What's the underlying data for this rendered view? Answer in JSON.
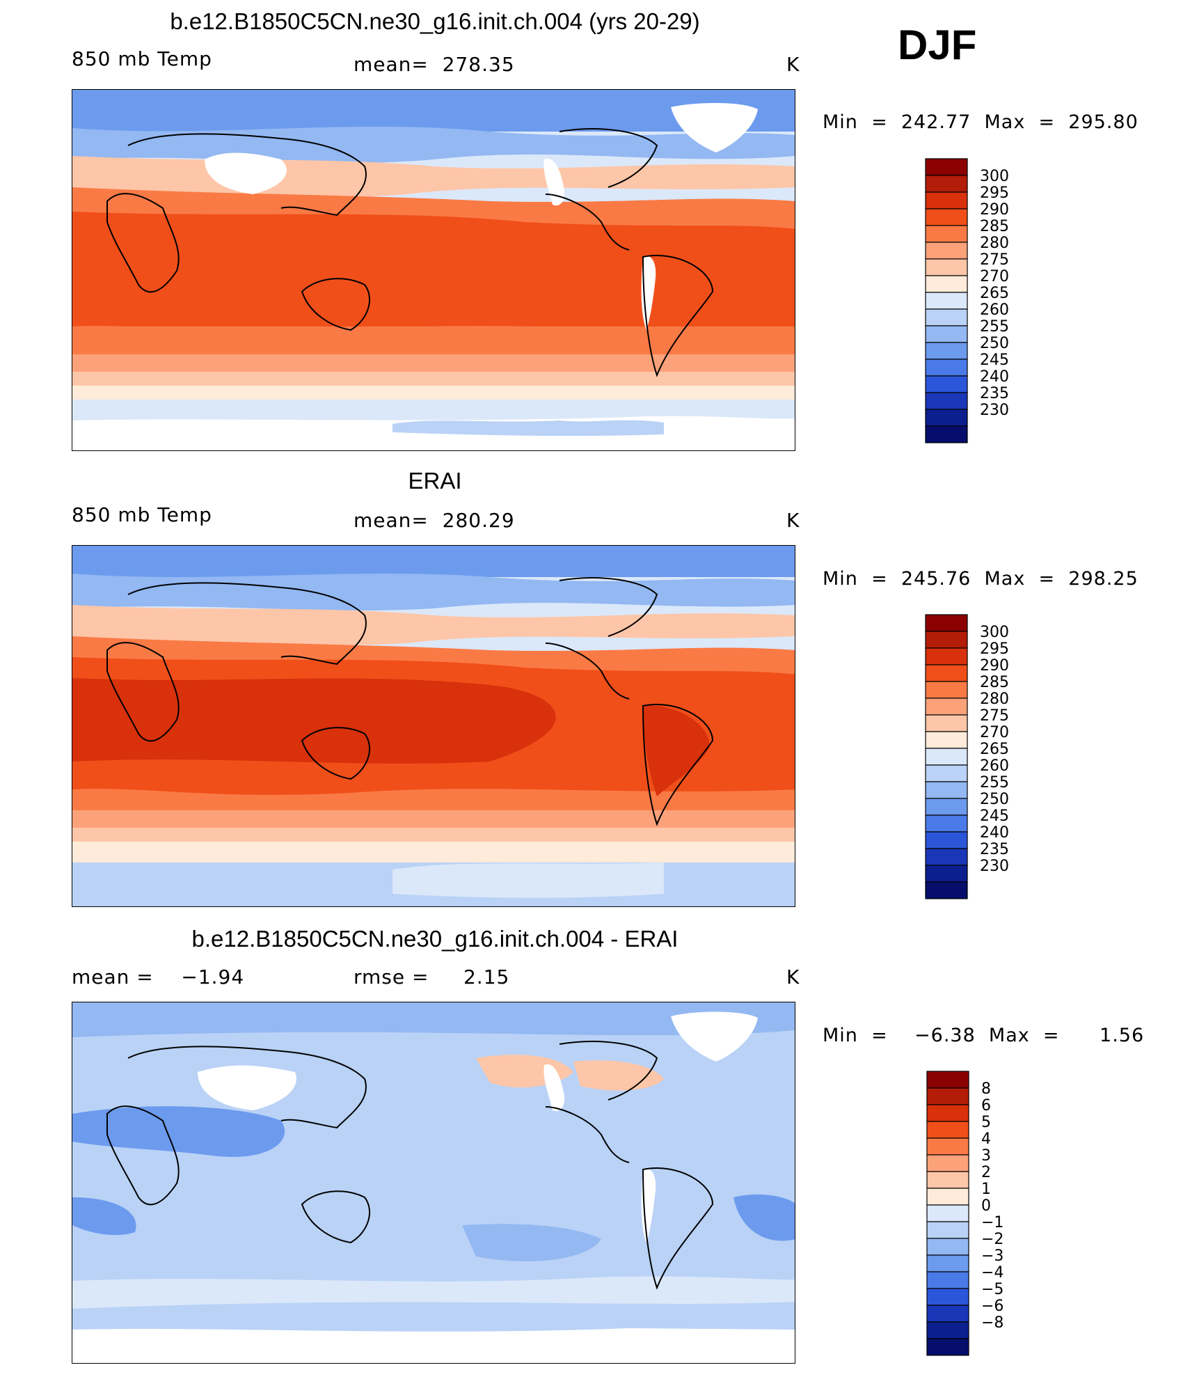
{
  "season": "DJF",
  "panels": [
    {
      "title": "b.e12.B1850C5CN.ne30_g16.init.ch.004 (yrs 20-29)",
      "left_label": "850 mb Temp",
      "center_label": "mean=  278.35",
      "units": "K",
      "minmax": "Min  =  242.77  Max  =  295.80",
      "colorbar_labels": [
        "300",
        "295",
        "290",
        "285",
        "280",
        "275",
        "270",
        "265",
        "260",
        "255",
        "250",
        "245",
        "240",
        "235",
        "230"
      ],
      "colorbar_colors": [
        "#8b0000",
        "#b31c08",
        "#d8310b",
        "#f04f1a",
        "#fa7a45",
        "#fca27a",
        "#fdc6a8",
        "#feebd9",
        "#dbe8fa",
        "#b9d2f6",
        "#93b8f2",
        "#6c9bee",
        "#4a7ae8",
        "#2c56da",
        "#1a37b8",
        "#0c1f8e",
        "#050f6b"
      ]
    },
    {
      "title": "ERAI",
      "left_label": "850 mb Temp",
      "center_label": "mean=  280.29",
      "units": "K",
      "minmax": "Min  =  245.76  Max  =  298.25",
      "colorbar_labels": [
        "300",
        "295",
        "290",
        "285",
        "280",
        "275",
        "270",
        "265",
        "260",
        "255",
        "250",
        "245",
        "240",
        "235",
        "230"
      ],
      "colorbar_colors": [
        "#8b0000",
        "#b31c08",
        "#d8310b",
        "#f04f1a",
        "#fa7a45",
        "#fca27a",
        "#fdc6a8",
        "#feebd9",
        "#dbe8fa",
        "#b9d2f6",
        "#93b8f2",
        "#6c9bee",
        "#4a7ae8",
        "#2c56da",
        "#1a37b8",
        "#0c1f8e",
        "#050f6b"
      ]
    },
    {
      "title": "b.e12.B1850C5CN.ne30_g16.init.ch.004 - ERAI",
      "left_label": "mean =    −1.94",
      "center_label": "rmse =     2.15",
      "units": "K",
      "minmax": "Min  =    −6.38  Max  =      1.56",
      "colorbar_labels": [
        "8",
        "6",
        "5",
        "4",
        "3",
        "2",
        "1",
        "0",
        "−1",
        "−2",
        "−3",
        "−4",
        "−5",
        "−6",
        "−8"
      ],
      "colorbar_colors": [
        "#8b0000",
        "#b31c08",
        "#d8310b",
        "#f04f1a",
        "#fa7a45",
        "#fca27a",
        "#fdc6a8",
        "#feebd9",
        "#dbe8fa",
        "#b9d2f6",
        "#93b8f2",
        "#6c9bee",
        "#4a7ae8",
        "#2c56da",
        "#1a37b8",
        "#0c1f8e",
        "#050f6b"
      ]
    }
  ]
}
